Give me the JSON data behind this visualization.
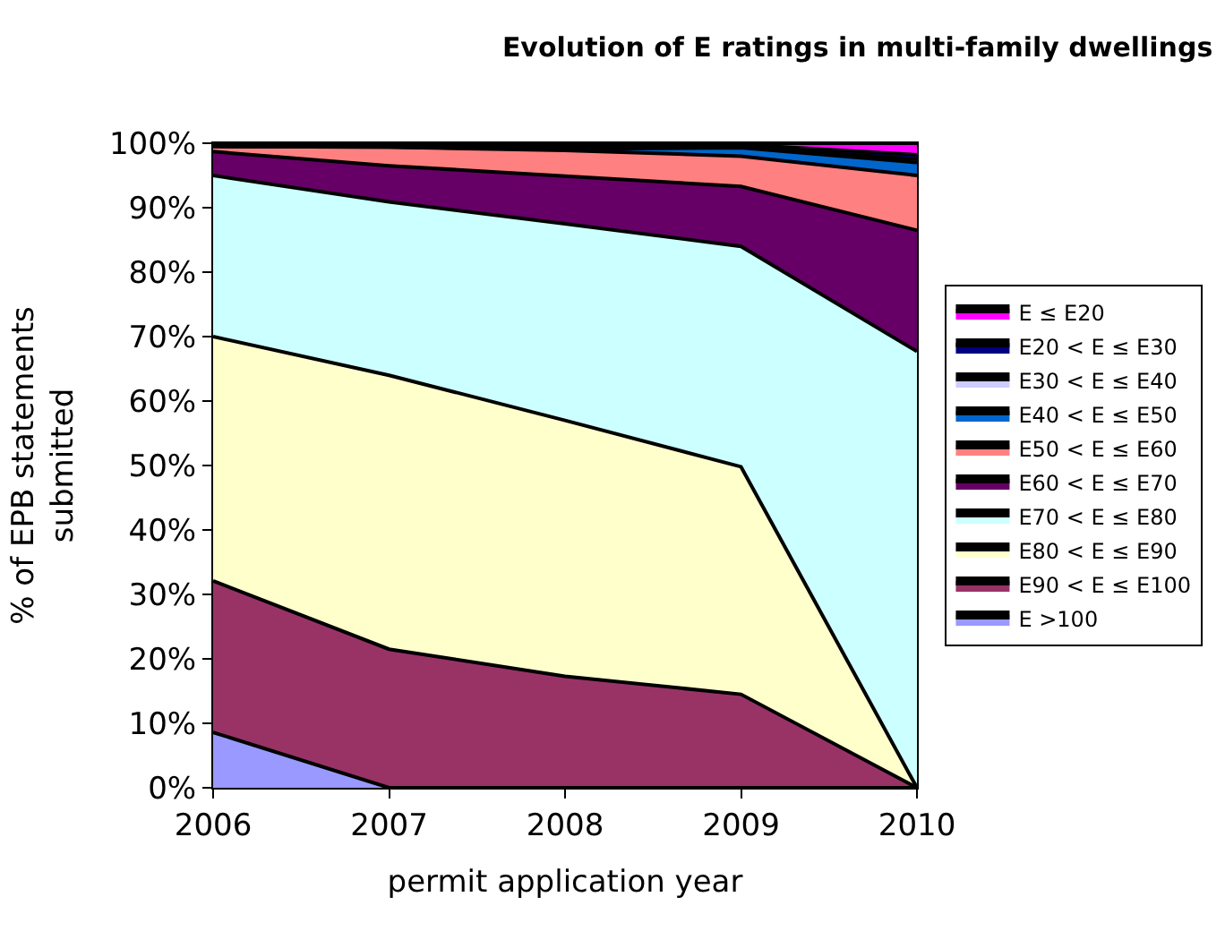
{
  "chart_data": {
    "type": "area",
    "title": "Evolution of E ratings in multi-family dwellings",
    "xlabel": "permit application year",
    "ylabel": "% of EPB statements\nsubmitted",
    "x": [
      2006,
      2007,
      2008,
      2009,
      2010
    ],
    "stacked": true,
    "legend": "right",
    "line_style": "solid",
    "marker": "none",
    "xlim": [
      2006,
      2010
    ],
    "xticks": [
      2006,
      2007,
      2008,
      2009,
      2010
    ],
    "ylim": [
      0,
      100
    ],
    "yticks": [
      {
        "value": 0,
        "label": "0%"
      },
      {
        "value": 10,
        "label": "10%"
      },
      {
        "value": 20,
        "label": "20%"
      },
      {
        "value": 30,
        "label": "30%"
      },
      {
        "value": 40,
        "label": "40%"
      },
      {
        "value": 50,
        "label": "50%"
      },
      {
        "value": 60,
        "label": "60%"
      },
      {
        "value": 70,
        "label": "70%"
      },
      {
        "value": 80,
        "label": "80%"
      },
      {
        "value": 90,
        "label": "90%"
      },
      {
        "value": 100,
        "label": "100%"
      }
    ],
    "series": [
      {
        "name": "E >100",
        "color": "#9999ff",
        "values": [
          8.6,
          0,
          0,
          0,
          0
        ]
      },
      {
        "name": "E90 < E ≤ E100",
        "color": "#993366",
        "values": [
          23.5,
          21.5,
          17.3,
          14.5,
          0
        ]
      },
      {
        "name": "E80 < E ≤ E90",
        "color": "#ffffcc",
        "values": [
          37.9,
          42.5,
          39.7,
          35.3,
          0
        ]
      },
      {
        "name": "E70 < E ≤ E80",
        "color": "#ccffff",
        "values": [
          25,
          26.9,
          30.5,
          34.2,
          67.7
        ]
      },
      {
        "name": "E60 < E ≤ E70",
        "color": "#660066",
        "values": [
          3.7,
          5.6,
          7.4,
          9.3,
          18.8
        ]
      },
      {
        "name": "E50 < E ≤ E60",
        "color": "#ff8080",
        "values": [
          0.8,
          2.9,
          4.0,
          4.7,
          8.5
        ]
      },
      {
        "name": "E40 < E ≤ E50",
        "color": "#0066cc",
        "values": [
          0,
          0,
          0.2,
          1.3,
          2.0
        ]
      },
      {
        "name": "E30 < E ≤ E40",
        "color": "#ccccff",
        "values": [
          0.2,
          0.2,
          0.2,
          0.2,
          0.5
        ]
      },
      {
        "name": "E20 < E ≤ E30",
        "color": "#000080",
        "values": [
          0.2,
          0.2,
          0.2,
          0.3,
          0.7
        ]
      },
      {
        "name": "E ≤ E20",
        "color": "#ff00ff",
        "values": [
          0.1,
          0.1,
          0.5,
          0.2,
          1.8
        ]
      }
    ]
  }
}
